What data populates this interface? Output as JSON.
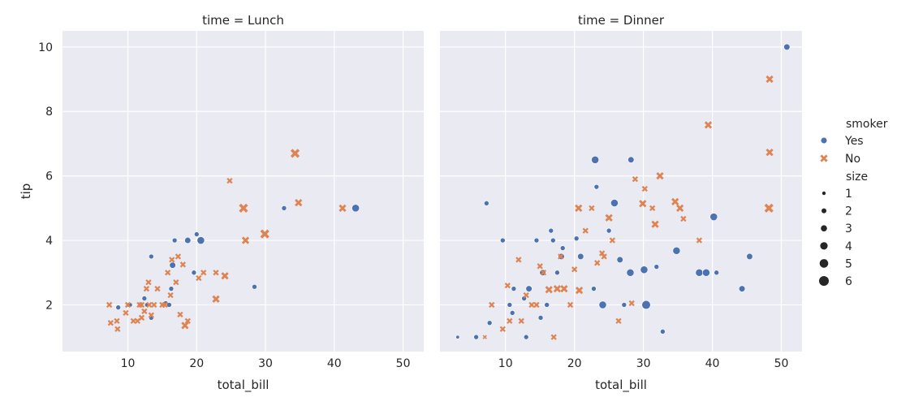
{
  "chart_data": {
    "type": "scatter",
    "xlabel": "total_bill",
    "ylabel": "tip",
    "xlim": [
      0.5,
      53
    ],
    "ylim": [
      0.55,
      10.5
    ],
    "xticks": [
      10,
      20,
      30,
      40,
      50
    ],
    "yticks": [
      2,
      4,
      6,
      8,
      10
    ],
    "grid": true,
    "legend_position": "right",
    "colors": {
      "Yes": "#4c72b0",
      "No": "#dd8452"
    },
    "panels": [
      {
        "title": "time = Lunch",
        "points": [
          [
            8.6,
            1.92,
            "Yes",
            2
          ],
          [
            10.1,
            2.0,
            "Yes",
            2
          ],
          [
            10.3,
            2.0,
            "Yes",
            2
          ],
          [
            12.4,
            2.2,
            "Yes",
            2
          ],
          [
            12.8,
            2.0,
            "Yes",
            2
          ],
          [
            13.4,
            3.5,
            "Yes",
            2
          ],
          [
            13.4,
            1.6,
            "Yes",
            2
          ],
          [
            15.5,
            2.05,
            "Yes",
            2
          ],
          [
            16.0,
            2.0,
            "Yes",
            2
          ],
          [
            16.3,
            2.5,
            "Yes",
            2
          ],
          [
            16.5,
            3.23,
            "Yes",
            3
          ],
          [
            16.8,
            4.0,
            "Yes",
            2
          ],
          [
            18.7,
            4.0,
            "Yes",
            3
          ],
          [
            19.6,
            3.0,
            "Yes",
            2
          ],
          [
            20.0,
            4.19,
            "Yes",
            2
          ],
          [
            20.6,
            4.0,
            "Yes",
            4
          ],
          [
            28.4,
            2.56,
            "Yes",
            2
          ],
          [
            32.7,
            5.0,
            "Yes",
            2
          ],
          [
            43.1,
            5.0,
            "Yes",
            4
          ],
          [
            7.3,
            2.0,
            "No",
            2
          ],
          [
            7.5,
            1.44,
            "No",
            2
          ],
          [
            8.4,
            1.5,
            "No",
            2
          ],
          [
            8.5,
            1.25,
            "No",
            2
          ],
          [
            9.7,
            1.75,
            "No",
            2
          ],
          [
            10.0,
            2.0,
            "No",
            2
          ],
          [
            10.8,
            1.5,
            "No",
            2
          ],
          [
            11.4,
            1.5,
            "No",
            2
          ],
          [
            11.7,
            2.0,
            "No",
            2
          ],
          [
            12.0,
            1.6,
            "No",
            2
          ],
          [
            12.0,
            2.0,
            "No",
            2
          ],
          [
            12.4,
            1.8,
            "No",
            2
          ],
          [
            12.7,
            2.5,
            "No",
            2
          ],
          [
            13.0,
            2.7,
            "No",
            2
          ],
          [
            13.1,
            2.0,
            "No",
            2
          ],
          [
            13.4,
            1.68,
            "No",
            2
          ],
          [
            13.8,
            2.0,
            "No",
            2
          ],
          [
            14.3,
            2.5,
            "No",
            2
          ],
          [
            15.0,
            2.0,
            "No",
            2
          ],
          [
            15.4,
            2.0,
            "No",
            2
          ],
          [
            15.8,
            3.0,
            "No",
            2
          ],
          [
            16.2,
            2.3,
            "No",
            2
          ],
          [
            16.4,
            3.4,
            "No",
            2
          ],
          [
            17.0,
            2.7,
            "No",
            2
          ],
          [
            17.3,
            3.5,
            "No",
            2
          ],
          [
            17.6,
            1.7,
            "No",
            2
          ],
          [
            18.0,
            3.25,
            "No",
            2
          ],
          [
            18.3,
            1.36,
            "No",
            3
          ],
          [
            18.7,
            1.5,
            "No",
            2
          ],
          [
            20.3,
            2.83,
            "No",
            2
          ],
          [
            21.0,
            3.0,
            "No",
            2
          ],
          [
            22.8,
            2.18,
            "No",
            3
          ],
          [
            22.8,
            3.0,
            "No",
            2
          ],
          [
            24.1,
            2.9,
            "No",
            3
          ],
          [
            24.8,
            5.85,
            "No",
            2
          ],
          [
            26.8,
            5.0,
            "No",
            4
          ],
          [
            27.1,
            4.0,
            "No",
            3
          ],
          [
            29.9,
            4.2,
            "No",
            4
          ],
          [
            34.3,
            6.7,
            "No",
            4
          ],
          [
            34.8,
            5.17,
            "No",
            3
          ],
          [
            41.2,
            5.0,
            "No",
            3
          ]
        ]
      },
      {
        "title": "time = Dinner",
        "points": [
          [
            3.07,
            1.0,
            "Yes",
            1
          ],
          [
            5.75,
            1.0,
            "Yes",
            2
          ],
          [
            7.25,
            5.15,
            "Yes",
            2
          ],
          [
            7.7,
            1.44,
            "Yes",
            2
          ],
          [
            9.6,
            4.0,
            "Yes",
            2
          ],
          [
            10.6,
            2.0,
            "Yes",
            2
          ],
          [
            11.0,
            1.75,
            "Yes",
            2
          ],
          [
            11.2,
            2.5,
            "Yes",
            2
          ],
          [
            12.7,
            2.2,
            "Yes",
            2
          ],
          [
            13.0,
            1.0,
            "Yes",
            2
          ],
          [
            13.4,
            2.5,
            "Yes",
            3
          ],
          [
            14.5,
            4.0,
            "Yes",
            2
          ],
          [
            15.1,
            1.6,
            "Yes",
            2
          ],
          [
            15.4,
            3.0,
            "Yes",
            3
          ],
          [
            16.0,
            2.0,
            "Yes",
            2
          ],
          [
            16.6,
            4.3,
            "Yes",
            2
          ],
          [
            16.9,
            4.0,
            "Yes",
            2
          ],
          [
            17.5,
            3.0,
            "Yes",
            2
          ],
          [
            18.1,
            3.5,
            "Yes",
            3
          ],
          [
            18.3,
            3.76,
            "Yes",
            2
          ],
          [
            20.3,
            4.06,
            "Yes",
            2
          ],
          [
            20.9,
            3.5,
            "Yes",
            3
          ],
          [
            22.8,
            2.5,
            "Yes",
            2
          ],
          [
            23.2,
            5.66,
            "Yes",
            2
          ],
          [
            23.0,
            6.5,
            "Yes",
            4
          ],
          [
            24.1,
            2.0,
            "Yes",
            4
          ],
          [
            25.0,
            4.3,
            "Yes",
            2
          ],
          [
            25.8,
            5.16,
            "Yes",
            4
          ],
          [
            26.6,
            3.4,
            "Yes",
            3
          ],
          [
            27.2,
            2.0,
            "Yes",
            2
          ],
          [
            28.1,
            3.0,
            "Yes",
            4
          ],
          [
            28.2,
            6.5,
            "Yes",
            3
          ],
          [
            30.1,
            3.09,
            "Yes",
            4
          ],
          [
            30.4,
            2.0,
            "Yes",
            5
          ],
          [
            31.9,
            3.18,
            "Yes",
            2
          ],
          [
            32.8,
            1.17,
            "Yes",
            2
          ],
          [
            34.8,
            3.68,
            "Yes",
            4
          ],
          [
            38.1,
            3.0,
            "Yes",
            4
          ],
          [
            39.1,
            3.0,
            "Yes",
            4
          ],
          [
            40.2,
            4.73,
            "Yes",
            4
          ],
          [
            40.6,
            3.0,
            "Yes",
            2
          ],
          [
            44.3,
            2.5,
            "Yes",
            3
          ],
          [
            45.4,
            3.5,
            "Yes",
            3
          ],
          [
            50.8,
            10.0,
            "Yes",
            3
          ],
          [
            7.0,
            1.0,
            "No",
            1
          ],
          [
            8.0,
            2.0,
            "No",
            2
          ],
          [
            9.6,
            1.25,
            "No",
            2
          ],
          [
            10.3,
            2.6,
            "No",
            2
          ],
          [
            10.6,
            1.5,
            "No",
            2
          ],
          [
            11.9,
            3.4,
            "No",
            2
          ],
          [
            12.3,
            1.5,
            "No",
            2
          ],
          [
            13.0,
            2.3,
            "No",
            2
          ],
          [
            13.8,
            2.0,
            "No",
            2
          ],
          [
            14.5,
            2.0,
            "No",
            2
          ],
          [
            15.0,
            3.2,
            "No",
            2
          ],
          [
            15.5,
            3.0,
            "No",
            2
          ],
          [
            16.3,
            2.47,
            "No",
            3
          ],
          [
            17.0,
            1.0,
            "No",
            2
          ],
          [
            17.5,
            2.5,
            "No",
            3
          ],
          [
            18.0,
            3.5,
            "No",
            2
          ],
          [
            18.5,
            2.5,
            "No",
            3
          ],
          [
            19.4,
            2.0,
            "No",
            2
          ],
          [
            20.0,
            3.1,
            "No",
            2
          ],
          [
            20.6,
            5.0,
            "No",
            3
          ],
          [
            20.7,
            2.45,
            "No",
            3
          ],
          [
            21.6,
            4.3,
            "No",
            2
          ],
          [
            22.5,
            5.0,
            "No",
            2
          ],
          [
            23.3,
            3.3,
            "No",
            2
          ],
          [
            24.0,
            3.6,
            "No",
            2
          ],
          [
            24.3,
            3.5,
            "No",
            2
          ],
          [
            25.0,
            4.7,
            "No",
            3
          ],
          [
            25.5,
            4.0,
            "No",
            2
          ],
          [
            26.4,
            1.5,
            "No",
            2
          ],
          [
            28.3,
            2.05,
            "No",
            2
          ],
          [
            28.8,
            5.9,
            "No",
            2
          ],
          [
            29.9,
            5.14,
            "No",
            3
          ],
          [
            30.2,
            5.6,
            "No",
            2
          ],
          [
            31.3,
            5.0,
            "No",
            2
          ],
          [
            31.7,
            4.5,
            "No",
            3
          ],
          [
            32.4,
            6.0,
            "No",
            3
          ],
          [
            34.6,
            5.2,
            "No",
            3
          ],
          [
            35.3,
            5.0,
            "No",
            3
          ],
          [
            35.8,
            4.67,
            "No",
            2
          ],
          [
            38.1,
            4.0,
            "No",
            2
          ],
          [
            39.4,
            7.58,
            "No",
            3
          ],
          [
            48.2,
            5.0,
            "No",
            4
          ],
          [
            48.3,
            6.73,
            "No",
            3
          ],
          [
            48.3,
            9.0,
            "No",
            3
          ]
        ]
      }
    ]
  },
  "legend": {
    "hue_title": "smoker",
    "hue_items": [
      "Yes",
      "No"
    ],
    "size_title": "size",
    "size_items": [
      "1",
      "2",
      "3",
      "4",
      "5",
      "6"
    ]
  }
}
